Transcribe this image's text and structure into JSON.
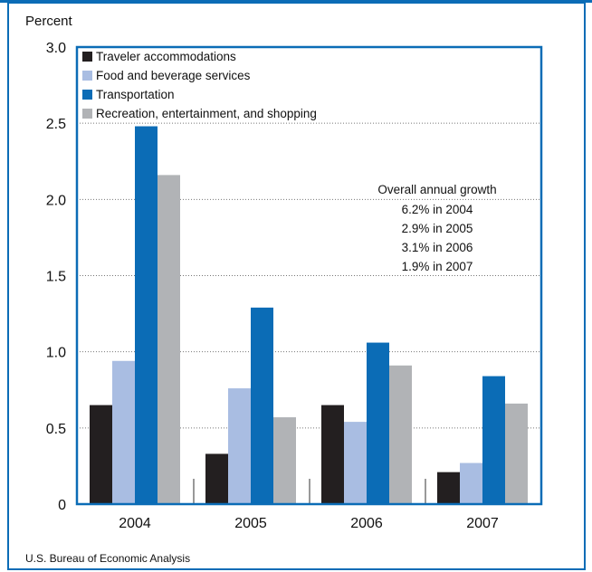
{
  "source": "U.S. Bureau of Economic Analysis",
  "colors": {
    "frame": "#0b6cb6",
    "Traveler accommodations": "#231f20",
    "Food and beverage services": "#a9bde2",
    "Transportation": "#0b6cb6",
    "Recreation, entertainment, and shopping": "#b1b3b6"
  },
  "chart_data": {
    "type": "bar",
    "title": "",
    "ylabel": "Percent",
    "xlabel": "",
    "ylim": [
      0,
      3.0
    ],
    "yticks": [
      "0",
      "0.5",
      "1.0",
      "1.5",
      "2.0",
      "2.5",
      "3.0"
    ],
    "categories": [
      "2004",
      "2005",
      "2006",
      "2007"
    ],
    "grid": "dotted horizontal",
    "legend_position": "top-left",
    "series": [
      {
        "name": "Traveler accommodations",
        "values": [
          0.65,
          0.33,
          0.65,
          0.21
        ]
      },
      {
        "name": "Food and beverage services",
        "values": [
          0.94,
          0.76,
          0.54,
          0.27
        ]
      },
      {
        "name": "Transportation",
        "values": [
          2.48,
          1.29,
          1.06,
          0.84
        ]
      },
      {
        "name": "Recreation, entertainment, and shopping",
        "values": [
          2.16,
          0.57,
          0.91,
          0.66
        ]
      }
    ],
    "annotation": {
      "title": "Overall annual growth",
      "lines": [
        "6.2% in 2004",
        "2.9% in 2005",
        "3.1% in 2006",
        "1.9% in 2007"
      ]
    }
  }
}
